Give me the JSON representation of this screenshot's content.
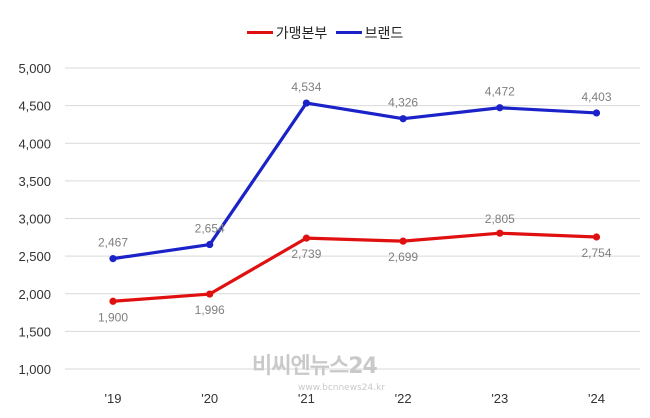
{
  "chart_data": {
    "type": "line",
    "categories": [
      "'19",
      "'20",
      "'21",
      "'22",
      "'23",
      "'24"
    ],
    "series": [
      {
        "name": "가맹본부",
        "color": "#e01010",
        "values": [
          1900,
          1996,
          2739,
          2699,
          2805,
          2754
        ],
        "labels": [
          "1,900",
          "1,996",
          "2,739",
          "2,699",
          "2,805",
          "2,754"
        ]
      },
      {
        "name": "브랜드",
        "color": "#1a22c8",
        "values": [
          2467,
          2654,
          4534,
          4326,
          4472,
          4403
        ],
        "labels": [
          "2,467",
          "2,654",
          "4,534",
          "4,326",
          "4,472",
          "4,403"
        ]
      }
    ],
    "ylim": [
      1000,
      5000
    ],
    "yticks": [
      1000,
      1500,
      2000,
      2500,
      3000,
      3500,
      4000,
      4500,
      5000
    ],
    "ytick_labels": [
      "1,000",
      "1,500",
      "2,000",
      "2,500",
      "3,000",
      "3,500",
      "4,000",
      "4,500",
      "5,000"
    ],
    "grid": true,
    "legend": "top-center"
  },
  "watermark": {
    "text": "비씨엔뉴스24",
    "sub": "www.bcnnews24.kr"
  }
}
